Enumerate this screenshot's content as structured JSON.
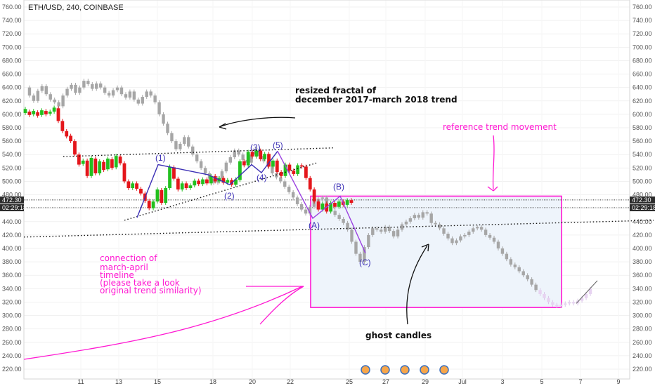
{
  "header": {
    "symbol": "ETH/USD, 240, COINBASE"
  },
  "colors": {
    "up": "#22c01f",
    "down": "#e4161b",
    "ghost": "#a6a6a6",
    "wave": "#3b2fb5",
    "fractal": "#9b42e0",
    "annotation_pink": "#ff18d2",
    "box_fill": "#eef4fb",
    "tag_bg": "#2c2c2c"
  },
  "price_tags": {
    "left": [
      "472.30",
      "02:29:18"
    ],
    "right": [
      "472.30",
      "02:29:18"
    ]
  },
  "chart_data": {
    "type": "candlestick",
    "title": "ETH/USD, 240, COINBASE",
    "ylim": [
      200,
      760
    ],
    "y_ticks": [
      "220.00",
      "240.00",
      "260.00",
      "280.00",
      "300.00",
      "320.00",
      "340.00",
      "360.00",
      "380.00",
      "400.00",
      "420.00",
      "440.00",
      "460.00",
      "480.00",
      "500.00",
      "520.00",
      "540.00",
      "560.00",
      "580.00",
      "600.00",
      "620.00",
      "640.00",
      "660.00",
      "680.00",
      "700.00",
      "720.00",
      "740.00",
      "760.00"
    ],
    "x_ticks": [
      "11",
      "13",
      "15",
      "18",
      "20",
      "22",
      "25",
      "27",
      "29",
      "Jul",
      "3",
      "5",
      "7",
      "9"
    ],
    "current_price": 472.3,
    "series_actual": [
      [
        602,
        608
      ],
      [
        604,
        599
      ],
      [
        600,
        605
      ],
      [
        603,
        598
      ],
      [
        599,
        606
      ],
      [
        605,
        600
      ],
      [
        601,
        604
      ],
      [
        604,
        610
      ],
      [
        609,
        590
      ],
      [
        590,
        575
      ],
      [
        575,
        567
      ],
      [
        568,
        560
      ],
      [
        560,
        540
      ],
      [
        540,
        525
      ],
      [
        526,
        531
      ],
      [
        531,
        508
      ],
      [
        508,
        535
      ],
      [
        534,
        512
      ],
      [
        512,
        530
      ],
      [
        529,
        517
      ],
      [
        518,
        534
      ],
      [
        533,
        520
      ],
      [
        521,
        538
      ],
      [
        537,
        527
      ],
      [
        527,
        500
      ],
      [
        500,
        490
      ],
      [
        490,
        497
      ],
      [
        497,
        489
      ],
      [
        489,
        482
      ],
      [
        482,
        471
      ],
      [
        471,
        460
      ],
      [
        460,
        470
      ],
      [
        470,
        488
      ],
      [
        487,
        468
      ],
      [
        468,
        490
      ],
      [
        490,
        522
      ],
      [
        521,
        504
      ],
      [
        504,
        488
      ],
      [
        488,
        497
      ],
      [
        497,
        490
      ],
      [
        490,
        494
      ],
      [
        494,
        501
      ],
      [
        501,
        496
      ],
      [
        496,
        503
      ],
      [
        503,
        497
      ],
      [
        497,
        508
      ],
      [
        508,
        500
      ],
      [
        500,
        505
      ],
      [
        505,
        498
      ],
      [
        498,
        502
      ],
      [
        502,
        495
      ],
      [
        495,
        503
      ],
      [
        502,
        530
      ],
      [
        530,
        524
      ],
      [
        524,
        544
      ],
      [
        544,
        537
      ],
      [
        537,
        546
      ],
      [
        546,
        533
      ],
      [
        533,
        541
      ],
      [
        541,
        522
      ],
      [
        522,
        531
      ],
      [
        531,
        514
      ],
      [
        514,
        508
      ],
      [
        508,
        525
      ],
      [
        525,
        516
      ],
      [
        516,
        511
      ],
      [
        511,
        524
      ],
      [
        524,
        522
      ],
      [
        522,
        505
      ],
      [
        505,
        488
      ],
      [
        488,
        470
      ],
      [
        470,
        458
      ],
      [
        458,
        467
      ],
      [
        467,
        455
      ],
      [
        455,
        468
      ],
      [
        468,
        462
      ],
      [
        462,
        470
      ],
      [
        470,
        465
      ],
      [
        465,
        472
      ],
      [
        472,
        468
      ]
    ],
    "series_ghost": [
      640,
      628,
      620,
      635,
      642,
      630,
      622,
      618,
      612,
      628,
      638,
      644,
      632,
      640,
      650,
      645,
      638,
      646,
      640,
      632,
      628,
      636,
      640,
      630,
      625,
      634,
      622,
      616,
      626,
      634,
      628,
      618,
      600,
      586,
      572,
      560,
      548,
      556,
      566,
      552,
      540,
      530,
      520,
      512,
      504,
      498,
      505,
      515,
      528,
      536,
      546,
      540,
      532,
      528,
      540,
      548,
      538,
      530,
      522,
      512,
      506,
      500,
      492,
      484,
      476,
      466,
      458,
      452,
      462,
      470,
      474,
      476,
      466,
      456,
      450,
      444,
      438,
      428,
      410,
      392,
      380,
      402,
      420,
      430,
      428,
      425,
      432,
      426,
      418,
      428,
      436,
      440,
      445,
      450,
      446,
      454,
      452,
      438,
      436,
      430,
      422,
      415,
      408,
      412,
      418,
      420,
      425,
      430,
      432,
      428,
      420,
      416,
      410,
      400,
      392,
      384,
      376,
      372,
      366,
      360,
      354,
      346,
      338,
      332,
      326,
      320,
      316,
      314,
      316,
      318,
      320,
      318,
      322,
      326,
      332,
      340
    ]
  }
}
